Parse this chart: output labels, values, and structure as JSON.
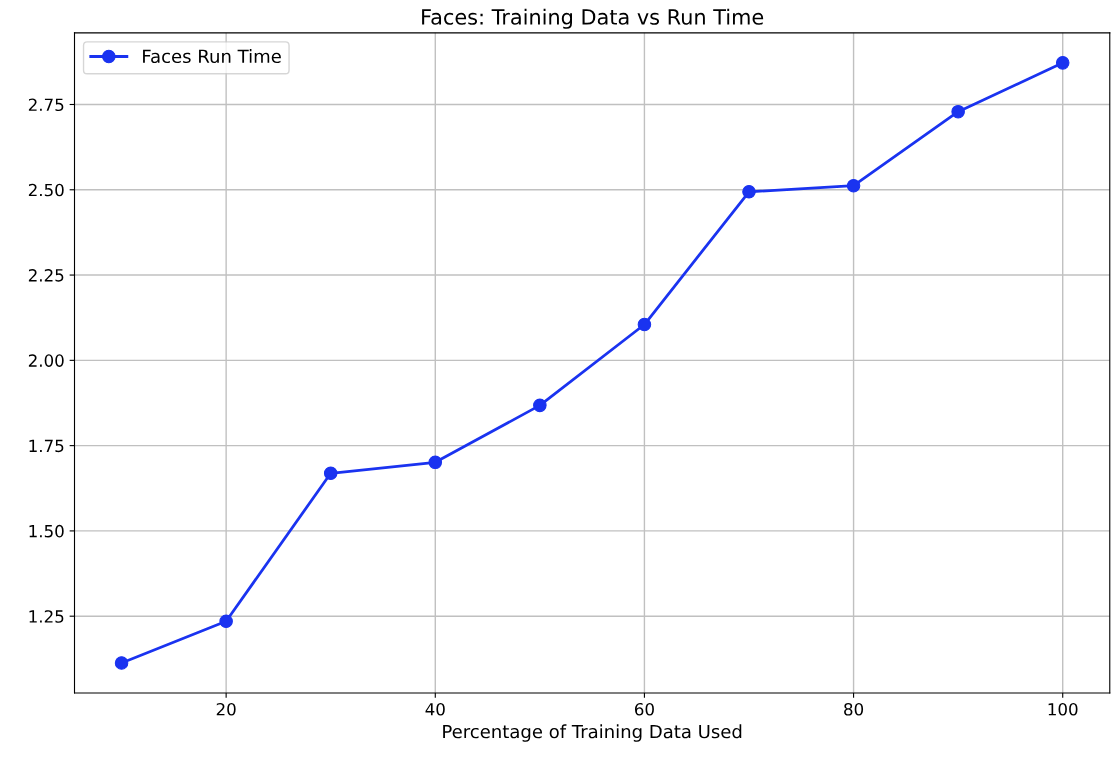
{
  "chart_data": {
    "type": "line",
    "title": "Faces: Training Data vs Run Time",
    "xlabel": "Percentage of Training Data Used",
    "x": [
      10,
      20,
      30,
      40,
      50,
      60,
      70,
      80,
      90,
      100
    ],
    "series": [
      {
        "name": "Faces Run Time",
        "color": "#1a33f0",
        "values": [
          1.113,
          1.235,
          1.669,
          1.701,
          1.868,
          2.105,
          2.494,
          2.512,
          2.729,
          2.872
        ]
      }
    ],
    "xlim": [
      5.5,
      104.5
    ],
    "ylim": [
      1.025,
      2.96
    ],
    "xticks": [
      20,
      40,
      60,
      80,
      100
    ],
    "yticks": [
      1.25,
      {
        "value": 1.5,
        "label": "1.50"
      },
      1.75,
      {
        "value": 2,
        "label": "2.00"
      },
      2.25,
      {
        "value": 2.5,
        "label": "2.50"
      },
      2.75
    ],
    "grid": true,
    "legend": "top left",
    "marker": "circle",
    "line_style": "solid"
  }
}
